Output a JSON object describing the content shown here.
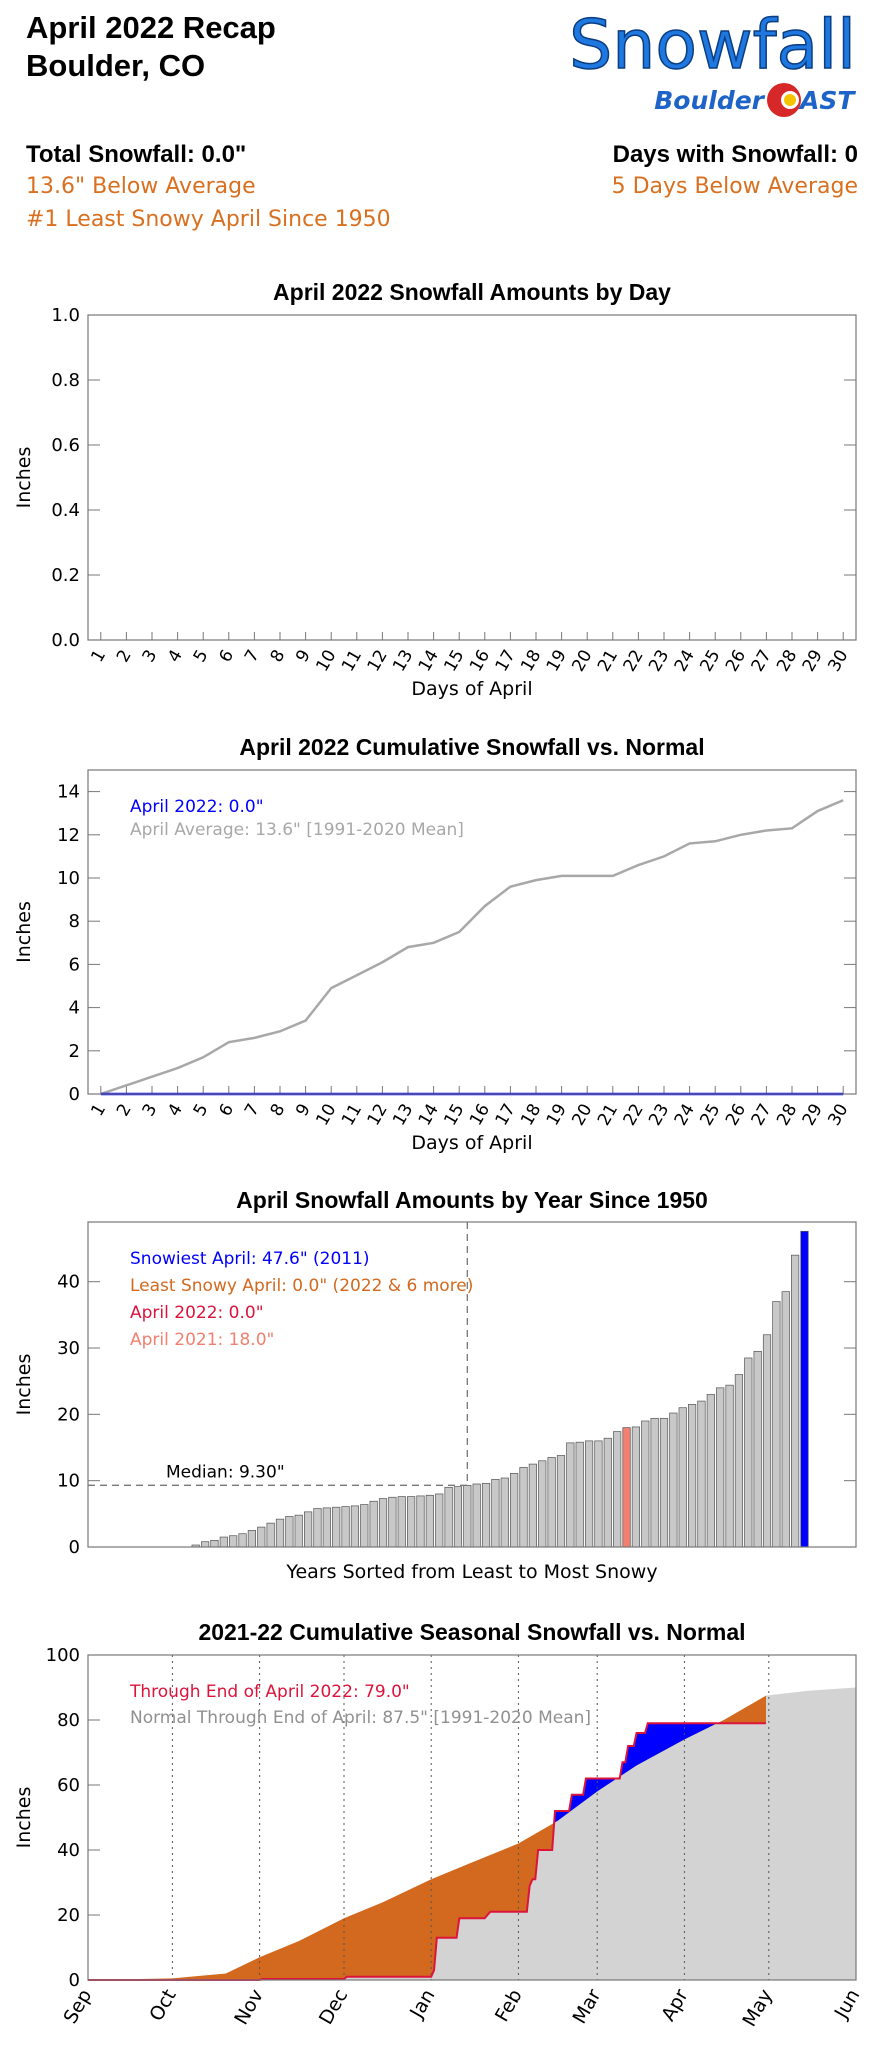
{
  "header": {
    "title": "April 2022 Recap",
    "location": "Boulder, CO",
    "logo_title": "Snowfall",
    "logo_brand": "Boulder",
    "logo_brand_end": "AST",
    "total": "Total Snowfall: 0.0\"",
    "total_vs_avg": "13.6\" Below Average",
    "rank": "#1 Least Snowy April Since 1950",
    "days": "Days with Snowfall: 0",
    "days_vs_avg": "5 Days Below Average"
  },
  "chart_data": [
    {
      "type": "bar",
      "title": "April 2022 Snowfall Amounts by Day",
      "x_label": "Days of April",
      "y_label": "Inches",
      "categories": [
        "1",
        "2",
        "3",
        "4",
        "5",
        "6",
        "7",
        "8",
        "9",
        "10",
        "11",
        "12",
        "13",
        "14",
        "15",
        "16",
        "17",
        "18",
        "19",
        "20",
        "21",
        "22",
        "23",
        "24",
        "25",
        "26",
        "27",
        "28",
        "29",
        "30"
      ],
      "values": [
        0,
        0,
        0,
        0,
        0,
        0,
        0,
        0,
        0,
        0,
        0,
        0,
        0,
        0,
        0,
        0,
        0,
        0,
        0,
        0,
        0,
        0,
        0,
        0,
        0,
        0,
        0,
        0,
        0,
        0
      ],
      "color": "#0000ff",
      "ylim": [
        0,
        1
      ],
      "yticks": [
        {
          "value": 0,
          "label": "0.0"
        },
        0.2,
        0.4,
        0.6,
        0.8,
        {
          "value": 1,
          "label": "1.0"
        }
      ]
    },
    {
      "type": "line",
      "title": "April 2022 Cumulative Snowfall vs. Normal",
      "x_label": "Days of April",
      "y_label": "Inches",
      "categories": [
        "1",
        "2",
        "3",
        "4",
        "5",
        "6",
        "7",
        "8",
        "9",
        "10",
        "11",
        "12",
        "13",
        "14",
        "15",
        "16",
        "17",
        "18",
        "19",
        "20",
        "21",
        "22",
        "23",
        "24",
        "25",
        "26",
        "27",
        "28",
        "29",
        "30"
      ],
      "series": [
        {
          "name": "April Average: 13.6\" [1991-2020 Mean]",
          "color": "#a8a8a8",
          "values": [
            0,
            0.4,
            0.8,
            1.2,
            1.7,
            2.4,
            2.6,
            2.9,
            3.4,
            4.9,
            5.5,
            6.1,
            6.8,
            7.0,
            7.5,
            8.7,
            9.6,
            9.9,
            10.1,
            10.1,
            10.1,
            10.6,
            11.0,
            11.6,
            11.7,
            12.0,
            12.2,
            12.3,
            13.1,
            13.6
          ]
        },
        {
          "name": "April 2022: 0.0\"",
          "color": "#0000ff",
          "values": [
            0,
            0,
            0,
            0,
            0,
            0,
            0,
            0,
            0,
            0,
            0,
            0,
            0,
            0,
            0,
            0,
            0,
            0,
            0,
            0,
            0,
            0,
            0,
            0,
            0,
            0,
            0,
            0,
            0,
            0
          ]
        }
      ],
      "ylim": [
        0,
        15
      ],
      "yticks": [
        0,
        2,
        4,
        6,
        8,
        10,
        12,
        14
      ]
    },
    {
      "type": "sorted_bar",
      "title": "April Snowfall Amounts by Year Since 1950",
      "x_label": "Years Sorted from Least to Most Snowy",
      "y_label": "Inches",
      "values": [
        0,
        0,
        0,
        0,
        0,
        0,
        0,
        0.3,
        0.8,
        1.0,
        1.5,
        1.7,
        2.0,
        2.5,
        3.0,
        3.6,
        4.2,
        4.6,
        4.8,
        5.3,
        5.8,
        5.9,
        6.0,
        6.1,
        6.2,
        6.4,
        6.9,
        7.3,
        7.5,
        7.6,
        7.6,
        7.7,
        7.8,
        8.0,
        9.0,
        9.1,
        9.3,
        9.5,
        9.6,
        10.2,
        10.4,
        11.1,
        12.0,
        12.5,
        13.0,
        13.5,
        13.8,
        15.7,
        15.8,
        16.0,
        16.0,
        16.4,
        17.4,
        18.0,
        18.1,
        19.0,
        19.4,
        19.4,
        20.2,
        21.0,
        21.5,
        22.0,
        23.0,
        24.0,
        24.4,
        26.0,
        28.5,
        29.5,
        32.0,
        37.0,
        38.5,
        44.0,
        47.6
      ],
      "colors": [
        "#c8c8c8",
        "#c8c8c8",
        "#c8c8c8",
        "#c8c8c8",
        "#c8c8c8",
        "#c8c8c8",
        "#c8c8c8",
        "#c8c8c8",
        "#c8c8c8",
        "#c8c8c8",
        "#c8c8c8",
        "#c8c8c8",
        "#c8c8c8",
        "#c8c8c8",
        "#c8c8c8",
        "#c8c8c8",
        "#c8c8c8",
        "#c8c8c8",
        "#c8c8c8",
        "#c8c8c8",
        "#c8c8c8",
        "#c8c8c8",
        "#c8c8c8",
        "#c8c8c8",
        "#c8c8c8",
        "#c8c8c8",
        "#c8c8c8",
        "#c8c8c8",
        "#c8c8c8",
        "#c8c8c8",
        "#c8c8c8",
        "#c8c8c8",
        "#c8c8c8",
        "#c8c8c8",
        "#c8c8c8",
        "#c8c8c8",
        "#c8c8c8",
        "#c8c8c8",
        "#c8c8c8",
        "#c8c8c8",
        "#c8c8c8",
        "#c8c8c8",
        "#c8c8c8",
        "#c8c8c8",
        "#c8c8c8",
        "#c8c8c8",
        "#c8c8c8",
        "#c8c8c8",
        "#c8c8c8",
        "#c8c8c8",
        "#c8c8c8",
        "#c8c8c8",
        "#c8c8c8",
        "#f08070",
        "#c8c8c8",
        "#c8c8c8",
        "#c8c8c8",
        "#c8c8c8",
        "#c8c8c8",
        "#c8c8c8",
        "#c8c8c8",
        "#c8c8c8",
        "#c8c8c8",
        "#c8c8c8",
        "#c8c8c8",
        "#c8c8c8",
        "#c8c8c8",
        "#c8c8c8",
        "#c8c8c8",
        "#c8c8c8",
        "#c8c8c8",
        "#c8c8c8",
        "#0000ff"
      ],
      "median": {
        "value": 9.3,
        "label": "Median: 9.30\""
      },
      "annotations": [
        {
          "text": "Snowiest April: 47.6\" (2011)",
          "color": "#0000ff"
        },
        {
          "text": "Least Snowy April: 0.0\" (2022 & 6 more)",
          "color": "#d2691e"
        },
        {
          "text": "April 2022: 0.0\"",
          "color": "#dc143c"
        },
        {
          "text": "April 2021: 18.0\"",
          "color": "#f08070"
        }
      ],
      "ylim": [
        0,
        49
      ],
      "yticks": [
        0,
        10,
        20,
        30,
        40
      ]
    },
    {
      "type": "area",
      "title": "2021-22 Cumulative Seasonal Snowfall vs. Normal",
      "y_label": "Inches",
      "series": [
        {
          "name": "Through End of April 2022: 79.0\"",
          "color": "#dc143c",
          "x": [
            0,
            61,
            62,
            91,
            92,
            122,
            123,
            124,
            131,
            132,
            141,
            142,
            143,
            156,
            157,
            158,
            159,
            160,
            165,
            166,
            171,
            172,
            176,
            177,
            181,
            182,
            189,
            190,
            191,
            192,
            194,
            195,
            198,
            199,
            241
          ],
          "values": [
            0,
            0,
            0.3,
            0.3,
            1,
            1,
            3,
            13,
            13,
            19,
            19,
            20,
            21,
            21,
            29,
            31,
            31,
            40,
            40,
            52,
            52,
            57,
            57,
            62,
            62,
            62,
            62,
            67,
            67,
            72,
            72,
            76,
            76,
            79,
            79
          ]
        },
        {
          "name": "Normal Through End of April: 87.5\" [1991-2020 Mean]",
          "color": "#909090",
          "fill": "#d3d3d3",
          "x": [
            0,
            30,
            49,
            61,
            75,
            91,
            105,
            122,
            136,
            153,
            167,
            181,
            195,
            212,
            226,
            241,
            256,
            273
          ],
          "values": [
            0,
            0.5,
            2,
            7,
            12,
            19,
            24,
            31,
            36,
            42,
            49,
            58,
            66,
            74,
            80,
            87.5,
            89,
            90
          ]
        }
      ],
      "above_color": "#0000ff",
      "below_color": "#d2691e",
      "xlim": [
        0,
        273
      ],
      "xticks": [
        {
          "value": 0,
          "label": "Sep"
        },
        {
          "value": 30,
          "label": "Oct"
        },
        {
          "value": 61,
          "label": "Nov"
        },
        {
          "value": 91,
          "label": "Dec"
        },
        {
          "value": 122,
          "label": "Jan"
        },
        {
          "value": 153,
          "label": "Feb"
        },
        {
          "value": 181,
          "label": "Mar"
        },
        {
          "value": 212,
          "label": "Apr"
        },
        {
          "value": 242,
          "label": "May"
        },
        {
          "value": 273,
          "label": "Jun"
        }
      ],
      "ylim": [
        0,
        100
      ],
      "yticks": [
        0,
        20,
        40,
        60,
        80,
        100
      ]
    }
  ]
}
